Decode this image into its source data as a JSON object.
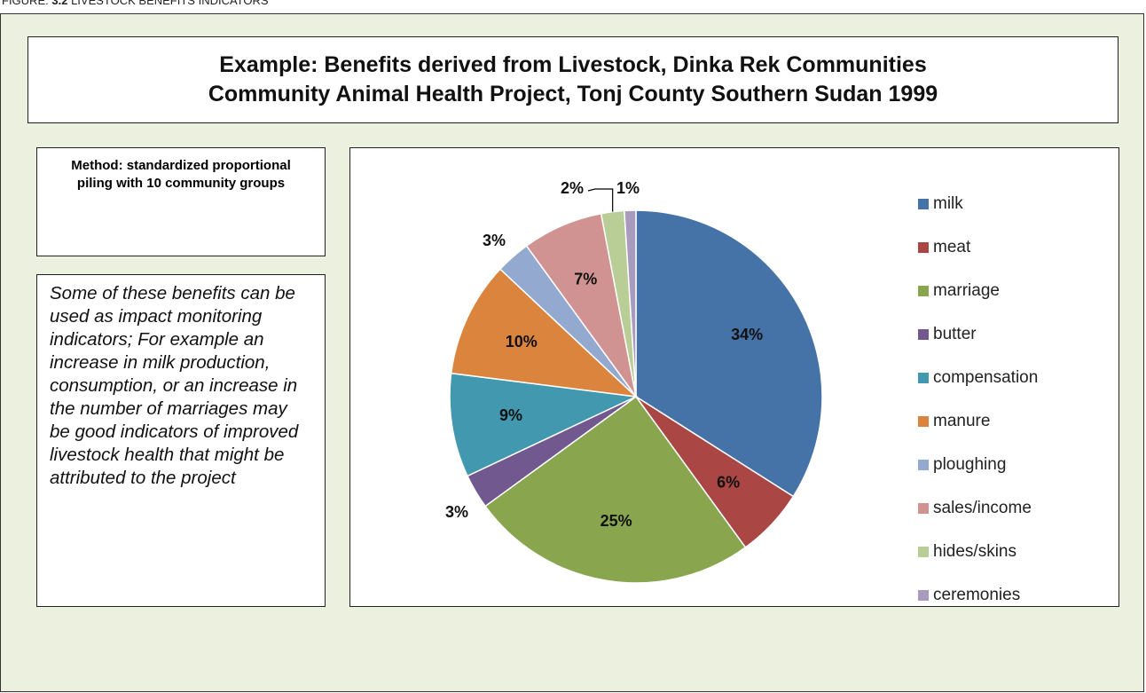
{
  "caption": {
    "label": "FIGURE:",
    "number": "3.2",
    "text": "LIVESTOCK BENEFITS INDICATORS"
  },
  "method": "Method: standardized proportional piling with 10 community groups",
  "note": "Some of these benefits can be used as impact monitoring indicators; For example an increase in milk production, consumption, or an increase in the number of marriages may be good indicators of improved livestock health that might be attributed to the project",
  "chart_data": {
    "type": "pie",
    "title": [
      "Example: Benefits derived from Livestock, Dinka Rek Communities",
      "Community Animal Health Project, Tonj County Southern Sudan 1999"
    ],
    "categories": [
      "milk",
      "meat",
      "marriage",
      "butter",
      "compensation",
      "manure",
      "ploughing",
      "sales/income",
      "hides/skins",
      "ceremonies"
    ],
    "values": [
      34,
      6,
      25,
      3,
      9,
      10,
      3,
      7,
      2,
      1
    ],
    "value_labels": [
      "34%",
      "6%",
      "25%",
      "3%",
      "9%",
      "10%",
      "3%",
      "7%",
      "2%",
      "1%"
    ],
    "colors": [
      "#4572a7",
      "#aa4643",
      "#89a54e",
      "#71588f",
      "#4198af",
      "#db843d",
      "#93a9cf",
      "#d19392",
      "#b9cd96",
      "#a99bbd"
    ],
    "legend": "right"
  }
}
